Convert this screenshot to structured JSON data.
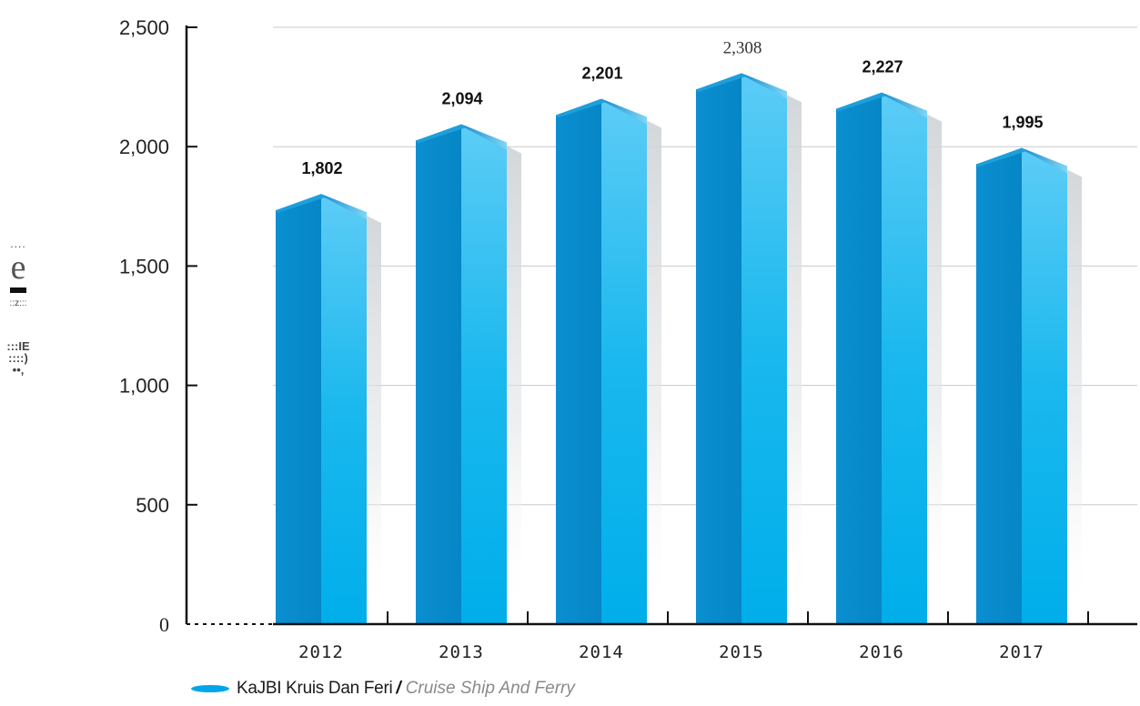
{
  "chart_data": {
    "type": "bar",
    "categories": [
      "2012",
      "2013",
      "2014",
      "2015",
      "2016",
      "2017"
    ],
    "values": [
      1802,
      2094,
      2201,
      2308,
      2227,
      1995
    ],
    "value_labels": [
      "1,802",
      "2,094",
      "2,201",
      "2,308",
      "2,227",
      "1,995"
    ],
    "yticks": [
      "0",
      "500",
      "1,000",
      "1,500",
      "2,000",
      "2,500"
    ],
    "ylim": [
      0,
      2500
    ],
    "grid": true,
    "legend_position": "bottom-left",
    "series_color": "#00a6e8",
    "title": "",
    "xlabel": "",
    "ylabel": ""
  },
  "legend": {
    "label_ms": "KaJBI Kruis Dan Feri",
    "separator": "/",
    "label_en": "Cruise Ship And Ferry"
  },
  "side_marks": {
    "dots": "....",
    "letter": "e",
    "small": "::z:::",
    "glyph_a": ":::IE",
    "glyph_b": "::::)",
    "glyph_c": "••,"
  }
}
